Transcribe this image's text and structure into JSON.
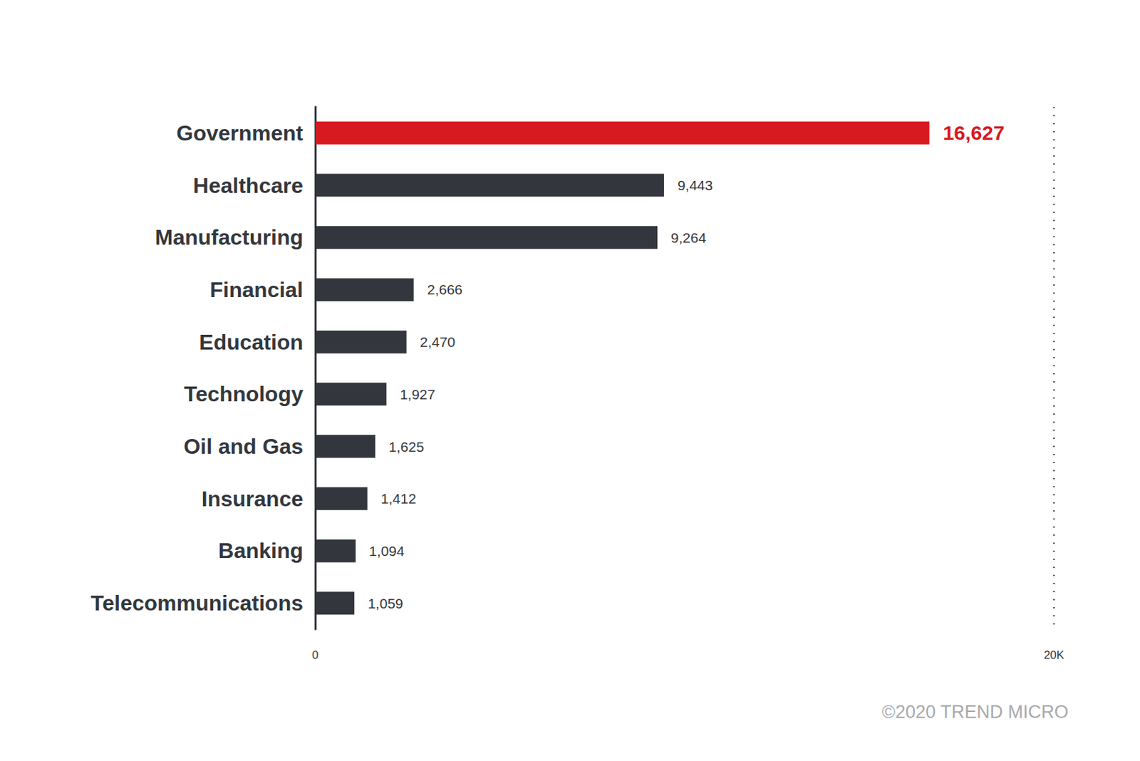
{
  "chart_data": {
    "type": "bar",
    "orientation": "horizontal",
    "categories": [
      "Government",
      "Healthcare",
      "Manufacturing",
      "Financial",
      "Education",
      "Technology",
      "Oil and Gas",
      "Insurance",
      "Banking",
      "Telecommunications"
    ],
    "values": [
      16627,
      9443,
      9264,
      2666,
      2470,
      1927,
      1625,
      1412,
      1094,
      1059
    ],
    "value_labels": [
      "16,627",
      "9,443",
      "9,264",
      "2,666",
      "2,470",
      "1,927",
      "1,625",
      "1,412",
      "1,094",
      "1,059"
    ],
    "colors": [
      "#d71920",
      "#33373d",
      "#33373d",
      "#33373d",
      "#33373d",
      "#33373d",
      "#33373d",
      "#33373d",
      "#33373d",
      "#33373d"
    ],
    "xlim": [
      0,
      20000
    ],
    "xticks": [
      0,
      {
        "value": 20000,
        "label": "20K"
      }
    ],
    "grid": true,
    "data_labels": true,
    "annotations": [
      "©2020 TREND MICRO"
    ]
  }
}
